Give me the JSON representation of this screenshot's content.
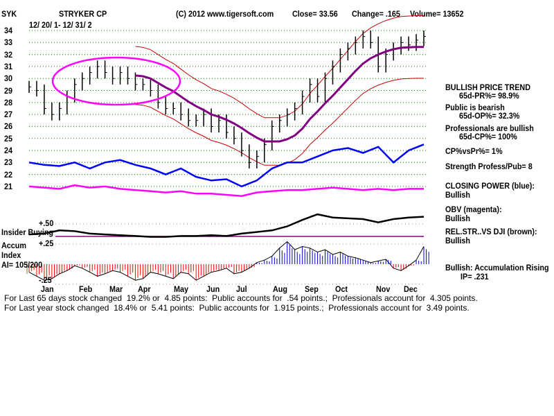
{
  "header": {
    "ticker": "SYK",
    "name": "STRYKER CP",
    "copyright": "(C) 2012 www.tigersoft.com",
    "close": "Close=  33.56",
    "change": "Change= .165",
    "volume": "Volume= 13652",
    "date_range": "12/ 20/ 1- 12/ 31/ 2"
  },
  "right_panel": {
    "trend": "BULLISH PRICE TREND",
    "pr": "65d-PR%= 98.9%",
    "public": "Public is bearish",
    "op": "65d-OP%= 32.3%",
    "professionals": "Professionals are bullish",
    "cp": "65d-CP%= 100%",
    "cpvspr": "CP%vsPr%=  1%",
    "strength": "Strength Profess/Pub= 8",
    "closing_power": "CLOSING POWER (blue):",
    "closing_power_val": "Bullish",
    "obv": "OBV (magenta):",
    "obv_val": "Bullish",
    "relstr": "REL.STR..VS DJI (brown):",
    "relstr_val": "Bullish",
    "accum": "Bullish: Accumulation Rising",
    "ip": "IP=  .231"
  },
  "lower_labels": {
    "insider": "Insider Buying",
    "accum": "Accum",
    "index": "Index",
    "ai": "AI= 105/200"
  },
  "footer": {
    "line1": "For Last 65 days stock changed  19.2% or  4.85 points:  Public accounts for  .54 points.;  Professionals account for  4.305 points.",
    "line2": "For Last year stock changed  18.4% or  5.41 points:  Public accounts for  1.915 points.;  Professionals account for  3.49 points."
  },
  "colors": {
    "price": "#000000",
    "ma": "#800080",
    "bands": "#cc0000",
    "cp": "#0000ff",
    "obv": "#ff00ff",
    "ellipse": "#ff00ff",
    "ai_pos": "#0000cc",
    "ai_neg": "#ff0000",
    "grid": "#008000"
  },
  "chart_data": {
    "type": "line",
    "title": "STRYKER CP",
    "price_axis": {
      "ticks": [
        "34",
        "33",
        "32",
        "31",
        "30",
        "29",
        "28",
        "27",
        "26",
        "25",
        "24",
        "23",
        "22",
        "21"
      ],
      "ylim": [
        21,
        34
      ]
    },
    "lower_axis": {
      "ticks": [
        "+.50",
        "+.25",
        "-.25"
      ],
      "ylim": [
        -0.25,
        0.5
      ]
    },
    "months": [
      {
        "label": "Jan",
        "week": 2.5
      },
      {
        "label": "Feb",
        "week": 7.5
      },
      {
        "label": "Mar",
        "week": 11.5
      },
      {
        "label": "Apr",
        "week": 15.2
      },
      {
        "label": "May",
        "week": 20
      },
      {
        "label": "Jun",
        "week": 24.3
      },
      {
        "label": "Jul",
        "week": 28.2
      },
      {
        "label": "Aug",
        "week": 33
      },
      {
        "label": "Sep",
        "week": 37.2
      },
      {
        "label": "Oct",
        "week": 41.2
      },
      {
        "label": "Nov",
        "week": 46.6
      },
      {
        "label": "Dec",
        "week": 50.3
      }
    ],
    "price_weekly_close": [
      29.3,
      29.0,
      27.5,
      27.0,
      27.5,
      28.5,
      29.5,
      30.0,
      30.5,
      31.0,
      30.5,
      30.0,
      30.5,
      30.0,
      29.5,
      29.5,
      29.0,
      28.0,
      27.5,
      27.5,
      27.0,
      26.5,
      26.5,
      27.0,
      26.0,
      26.5,
      25.5,
      25.0,
      24.0,
      23.0,
      23.5,
      24.5,
      26.0,
      26.5,
      27.0,
      27.5,
      28.5,
      29.5,
      28.5,
      30.0,
      31.0,
      32.0,
      32.5,
      33.0,
      33.5,
      33.0,
      31.0,
      32.0,
      32.5,
      33.0,
      32.8,
      33.2,
      33.5
    ],
    "closing_power": [
      23,
      22.8,
      22.7,
      23,
      22.5,
      23,
      23.2,
      22.8,
      22.5,
      22,
      22.5,
      21.8,
      21.5,
      21.6,
      21,
      21.5,
      22.5,
      23,
      23,
      23.5,
      24,
      24.2,
      23.8,
      24.3,
      23,
      24,
      24.5
    ],
    "obv": [
      21,
      20.9,
      20.8,
      21.1,
      20.9,
      21,
      20.8,
      20.7,
      20.6,
      20.5,
      20.6,
      20.4,
      20.4,
      20.3,
      20.2,
      20.5,
      20.6,
      20.7,
      20.7,
      20.8,
      20.9,
      20.8,
      20.7,
      20.8,
      20.7,
      20.8,
      20.8
    ],
    "rel_strength": [
      0.37,
      0.38,
      0.42,
      0.41,
      0.38,
      0.37,
      0.36,
      0.35,
      0.34,
      0.34,
      0.35,
      0.35,
      0.36,
      0.35,
      0.38,
      0.4,
      0.42,
      0.47,
      0.55,
      0.62,
      0.58,
      0.57,
      0.56,
      0.52,
      0.56,
      0.58,
      0.59
    ],
    "accum_index": [
      -0.1,
      -0.15,
      -0.2,
      -0.18,
      -0.12,
      -0.08,
      -0.02,
      -0.05,
      -0.1,
      -0.15,
      -0.12,
      -0.08,
      -0.1,
      -0.15,
      -0.2,
      -0.18,
      -0.1,
      -0.12,
      -0.15,
      -0.18,
      -0.1,
      -0.12,
      -0.2,
      -0.15,
      -0.1,
      -0.08,
      -0.05,
      -0.12,
      -0.1,
      -0.05,
      0.02,
      0.05,
      0.1,
      0.2,
      0.28,
      0.18,
      0.22,
      0.2,
      0.15,
      0.18,
      0.12,
      0.15,
      0.1,
      0.08,
      0.05,
      0.02,
      0.04,
      0.06,
      -0.05,
      -0.08,
      -0.02,
      0.05,
      0.22
    ]
  }
}
